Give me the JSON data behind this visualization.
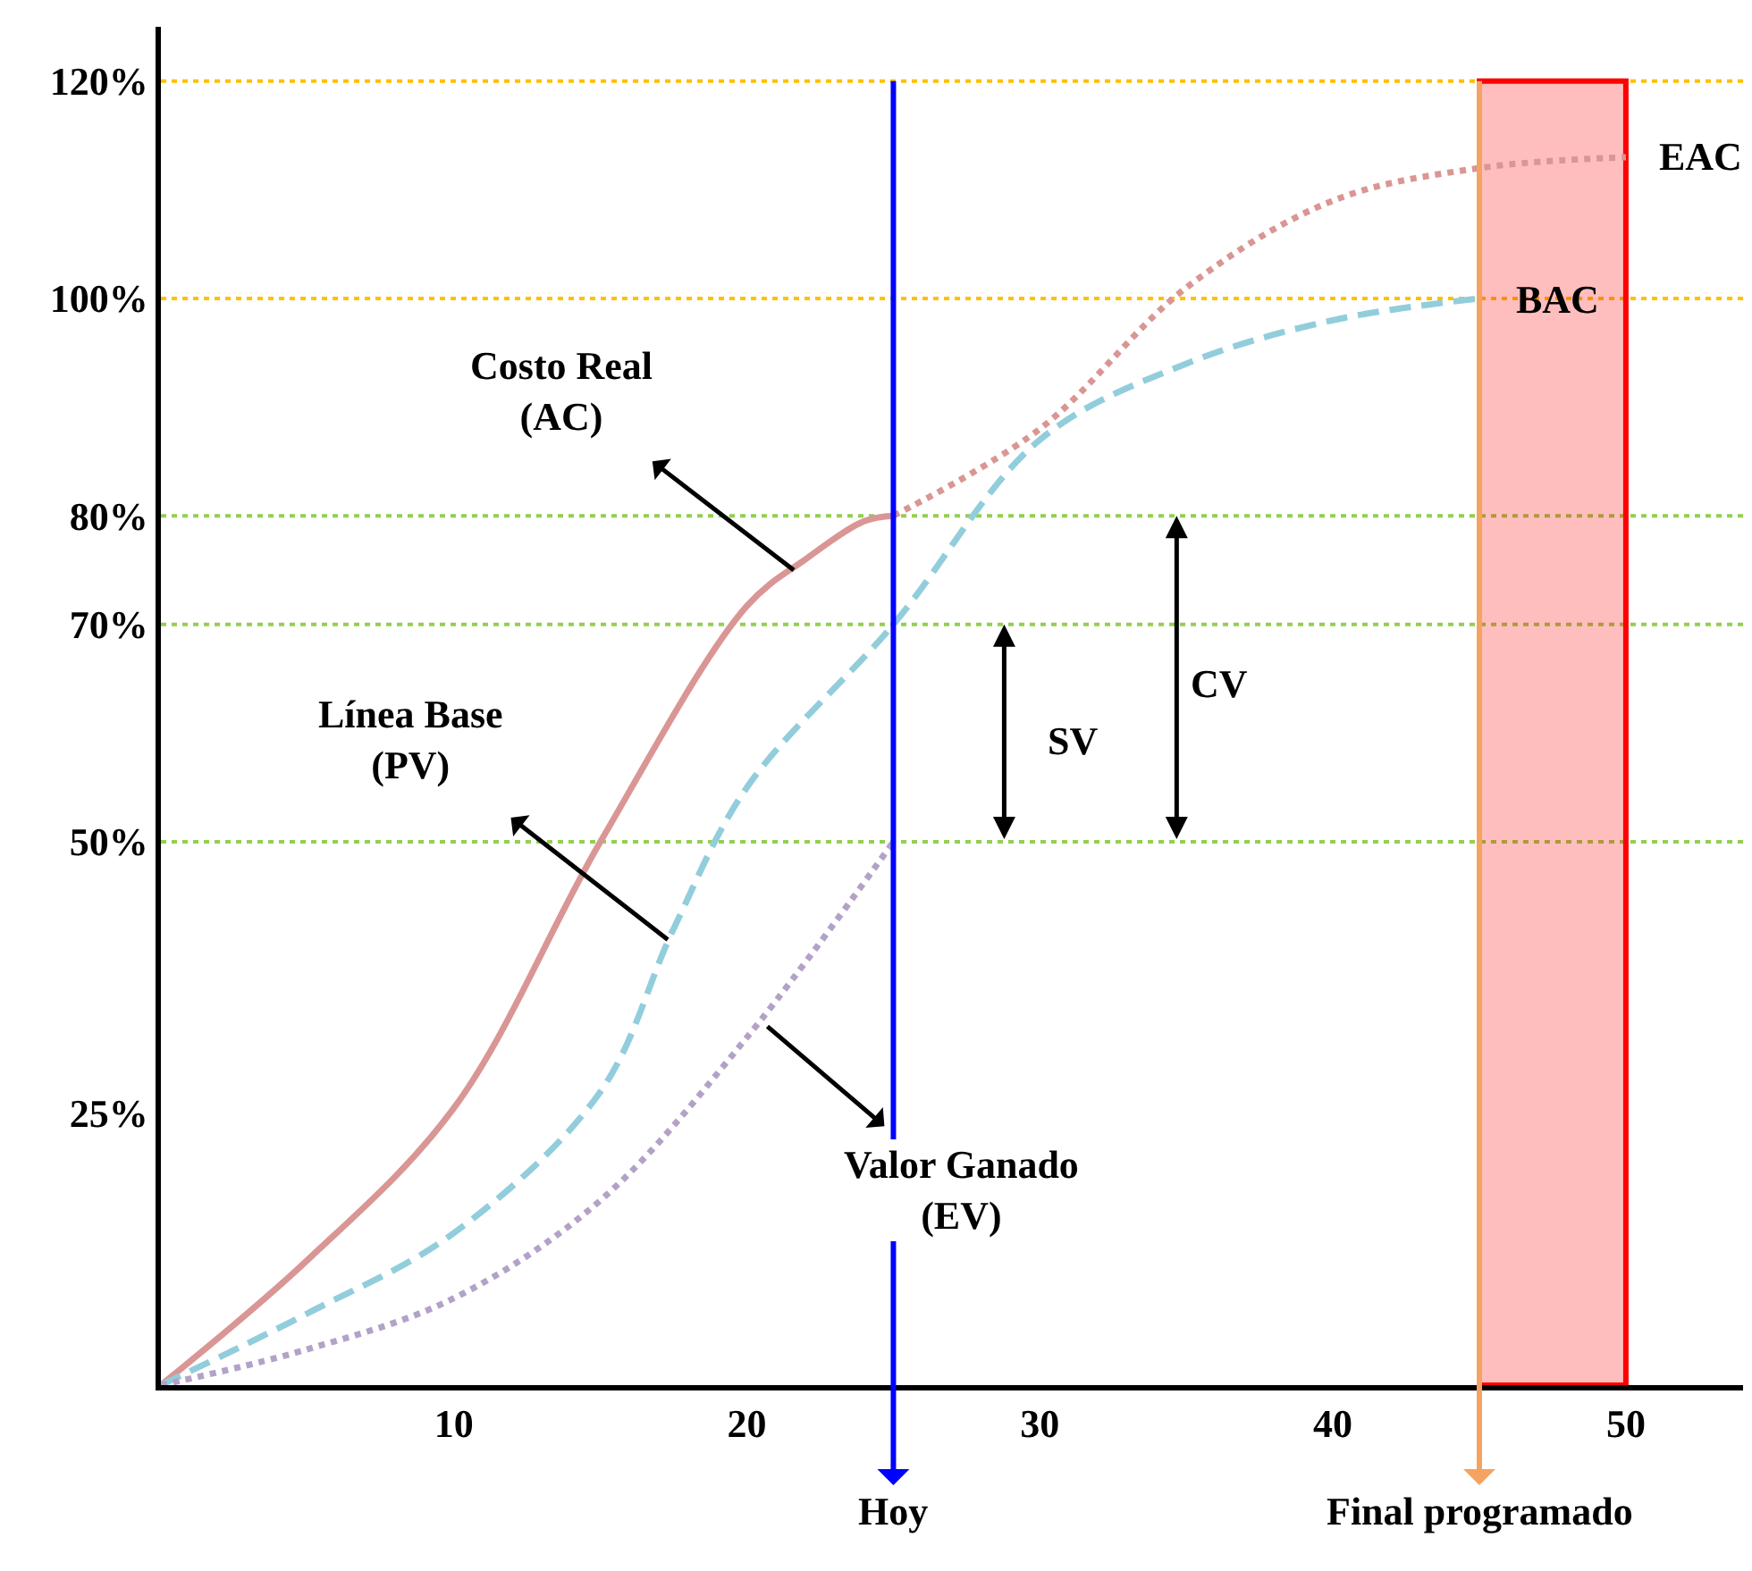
{
  "chart_data": {
    "type": "line",
    "xlim": [
      0,
      54
    ],
    "ylim": [
      0,
      125
    ],
    "xticks": [
      10,
      20,
      30,
      40,
      50
    ],
    "yticks": [
      {
        "value": 25,
        "label": "25%"
      },
      {
        "value": 50,
        "label": "50%"
      },
      {
        "value": 70,
        "label": "70%"
      },
      {
        "value": 80,
        "label": "80%"
      },
      {
        "value": 100,
        "label": "100%"
      },
      {
        "value": 120,
        "label": "120%"
      }
    ],
    "grid": false,
    "marker": "none",
    "series": [
      {
        "color": "#d99694",
        "line_style": "solid",
        "x": [
          0,
          5,
          10,
          15,
          20,
          22,
          24,
          25
        ],
        "values": [
          0,
          11.5,
          25.5,
          50,
          71.7,
          76,
          79.5,
          80
        ]
      },
      {
        "color": "#d99694",
        "line_style": "dotted",
        "x": [
          25,
          30,
          35,
          40,
          45,
          50
        ],
        "values": [
          80,
          88,
          101,
          109,
          112,
          113
        ]
      },
      {
        "color": "#92cddc",
        "line_style": "dashed",
        "x": [
          0,
          5,
          10,
          15,
          17.5,
          20,
          25,
          30,
          35,
          40,
          45
        ],
        "values": [
          0,
          6.6,
          14,
          27,
          42,
          55,
          70,
          87,
          94,
          98,
          100
        ]
      },
      {
        "color": "#b3a2c7",
        "line_style": "dotted",
        "x": [
          0,
          5,
          10,
          15,
          20,
          25
        ],
        "values": [
          0,
          3.3,
          8,
          17,
          32,
          50
        ]
      }
    ],
    "ref_lines": [
      {
        "axis": "y",
        "value": 120,
        "color": "#ffc000",
        "line_style": "dotted"
      },
      {
        "axis": "y",
        "value": 100,
        "color": "#ffc000",
        "line_style": "dotted"
      },
      {
        "axis": "y",
        "value": 80,
        "color": "#92d050",
        "line_style": "dotted"
      },
      {
        "axis": "y",
        "value": 70,
        "color": "#92d050",
        "line_style": "dotted"
      },
      {
        "axis": "y",
        "value": 50,
        "color": "#92d050",
        "line_style": "dotted"
      },
      {
        "axis": "x",
        "value": 25,
        "label": "Hoy",
        "color": "#0000ff",
        "line_style": "solid"
      },
      {
        "axis": "x",
        "value": 45,
        "label": "Final programado",
        "color": "#f4a460",
        "line_style": "solid"
      }
    ],
    "bands": [
      {
        "axis": "x",
        "from": 45,
        "to": 50,
        "color": "#ff0000"
      }
    ],
    "annotations": [
      {
        "text": "Costo Real\n(AC)",
        "x": 21.6,
        "y": 75
      },
      {
        "text": "Línea Base\n(PV)",
        "x": 17.3,
        "y": 41
      },
      {
        "text": "Valor Ganado\n(EV)",
        "x": 20.7,
        "y": 33
      },
      "SV",
      "CV",
      {
        "text": "EAC",
        "x": 50,
        "y": 113
      },
      {
        "text": "BAC",
        "x": 45,
        "y": 100
      }
    ]
  }
}
